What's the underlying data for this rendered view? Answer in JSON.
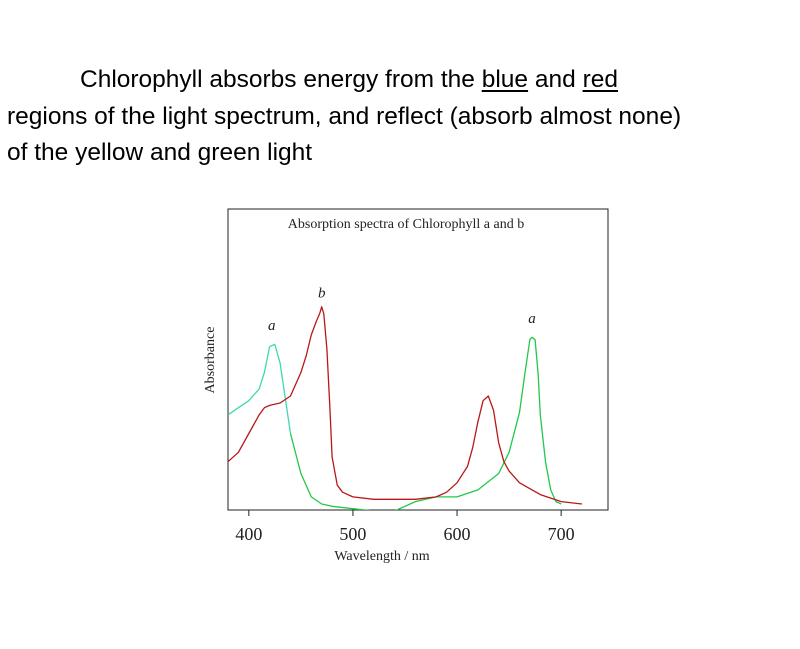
{
  "caption": {
    "line1_pre": "Chlorophyll absorbs energy from the ",
    "blue_word": "blue",
    "line1_mid": " and ",
    "red_word": "red",
    "line2": "regions of the light spectrum, and reflect (absorb almost none)",
    "line3": "of the yellow and green light"
  },
  "chart_data": {
    "type": "line",
    "title": "Absorption spectra of Chlorophyll a and b",
    "xlabel": "Wavelength / nm",
    "ylabel": "Absorbance",
    "xlim": [
      380,
      745
    ],
    "ylim": [
      0,
      1
    ],
    "xticks": [
      400,
      500,
      600,
      700
    ],
    "grid": false,
    "colors": {
      "series_a_blue_region": "#3fd8b0",
      "series_a_red_region": "#22c84a",
      "series_b": "#b81818"
    },
    "series": [
      {
        "name": "a",
        "peak_labels": [
          {
            "text": "a",
            "x": 422,
            "y": 0.74
          },
          {
            "text": "a",
            "x": 672,
            "y": 0.77
          }
        ],
        "x": [
          380,
          390,
          400,
          410,
          415,
          420,
          425,
          430,
          435,
          440,
          450,
          460,
          470,
          480,
          500,
          520,
          540,
          560,
          580,
          600,
          620,
          640,
          650,
          660,
          665,
          668,
          670,
          672,
          675,
          678,
          680,
          685,
          690,
          695,
          700
        ],
        "y": [
          0.38,
          0.41,
          0.44,
          0.49,
          0.56,
          0.67,
          0.68,
          0.6,
          0.45,
          0.3,
          0.13,
          0.03,
          0.0,
          -0.01,
          -0.02,
          -0.03,
          -0.03,
          0.01,
          0.03,
          0.03,
          0.06,
          0.13,
          0.22,
          0.39,
          0.55,
          0.64,
          0.7,
          0.71,
          0.7,
          0.55,
          0.38,
          0.18,
          0.06,
          0.01,
          0.0
        ]
      },
      {
        "name": "b",
        "peak_labels": [
          {
            "text": "b",
            "x": 470,
            "y": 0.88
          }
        ],
        "x": [
          380,
          390,
          400,
          410,
          415,
          420,
          430,
          440,
          450,
          455,
          460,
          465,
          468,
          470,
          472,
          475,
          478,
          480,
          485,
          490,
          500,
          520,
          540,
          560,
          580,
          590,
          600,
          610,
          615,
          620,
          625,
          630,
          635,
          640,
          645,
          650,
          660,
          680,
          700,
          720
        ],
        "y": [
          0.18,
          0.22,
          0.3,
          0.38,
          0.41,
          0.42,
          0.43,
          0.46,
          0.56,
          0.63,
          0.72,
          0.78,
          0.81,
          0.84,
          0.81,
          0.66,
          0.4,
          0.2,
          0.08,
          0.05,
          0.03,
          0.02,
          0.02,
          0.02,
          0.03,
          0.05,
          0.09,
          0.16,
          0.24,
          0.35,
          0.44,
          0.46,
          0.4,
          0.26,
          0.18,
          0.14,
          0.09,
          0.04,
          0.01,
          0.0
        ]
      }
    ]
  }
}
